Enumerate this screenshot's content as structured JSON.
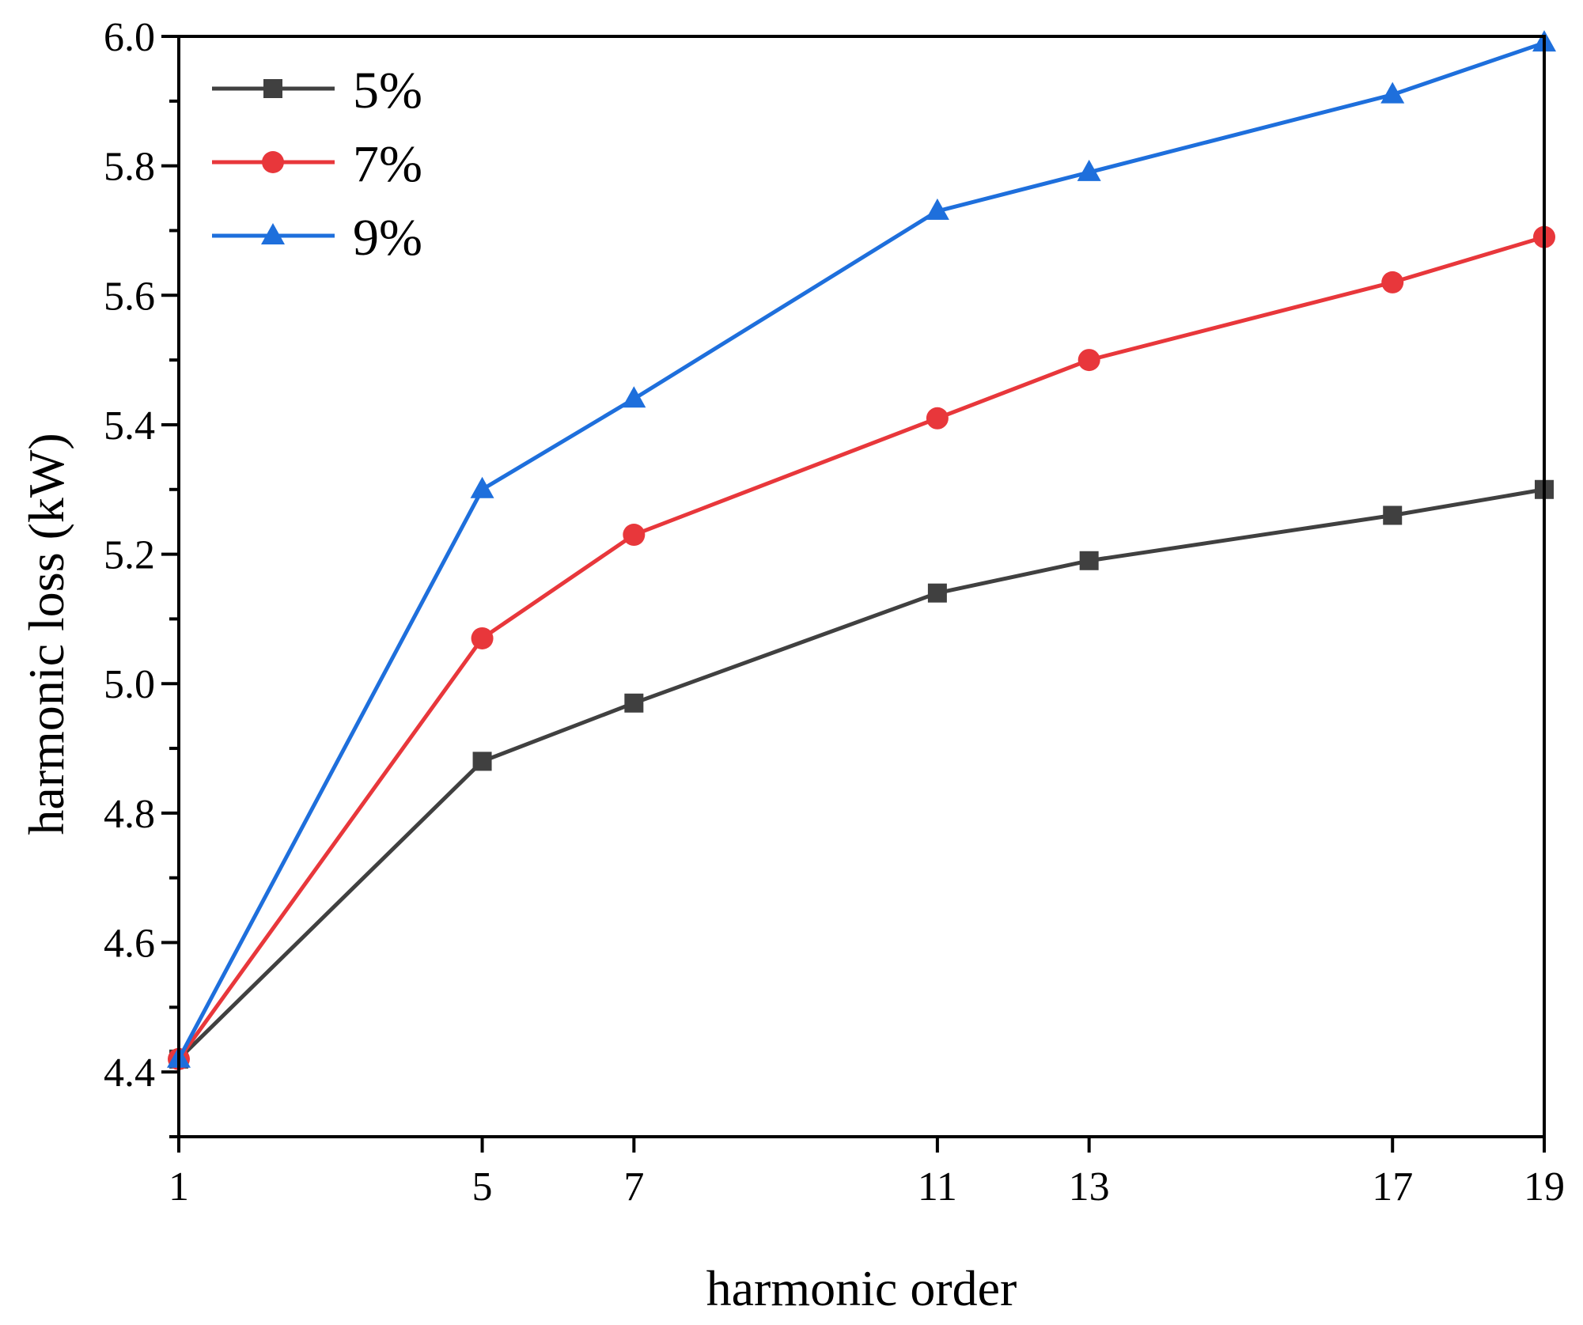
{
  "chart_data": {
    "type": "line",
    "title": "",
    "xlabel": "harmonic order",
    "ylabel": "harmonic loss (kW)",
    "x": [
      1,
      5,
      7,
      11,
      13,
      17,
      19
    ],
    "x_tick_labels": [
      "1",
      "5",
      "7",
      "11",
      "13",
      "17",
      "19"
    ],
    "xlim": [
      1,
      19
    ],
    "ylim": [
      4.3,
      6.0
    ],
    "y_ticks": [
      4.4,
      4.6,
      4.8,
      5.0,
      5.2,
      5.4,
      5.6,
      5.8,
      6.0
    ],
    "y_tick_labels": [
      "4.4",
      "4.6",
      "4.8",
      "5.0",
      "5.2",
      "5.4",
      "5.6",
      "5.8",
      "6.0"
    ],
    "grid": false,
    "legend_position": "top-left",
    "series": [
      {
        "name": "5%",
        "marker": "square",
        "color": "#404040",
        "values": [
          4.42,
          4.88,
          4.97,
          5.14,
          5.19,
          5.26,
          5.3
        ]
      },
      {
        "name": "7%",
        "marker": "circle",
        "color": "#e8373b",
        "values": [
          4.42,
          5.07,
          5.23,
          5.41,
          5.5,
          5.62,
          5.69
        ]
      },
      {
        "name": "9%",
        "marker": "triangle",
        "color": "#1e6fdc",
        "values": [
          4.42,
          5.3,
          5.44,
          5.73,
          5.79,
          5.91,
          5.99
        ]
      }
    ]
  }
}
